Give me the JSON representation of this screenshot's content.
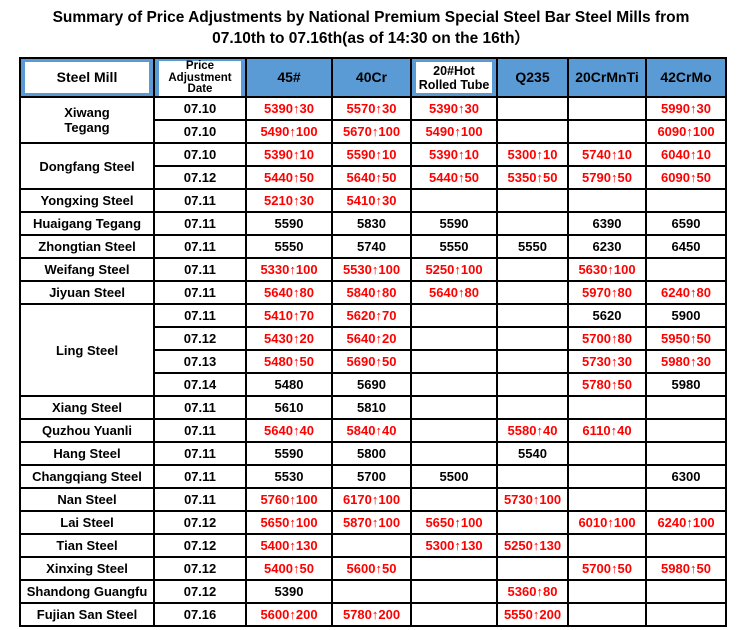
{
  "title": {
    "line1": "Summary of Price Adjustments by National Premium Special Steel Bar Steel Mills from",
    "line2": "07.10th to 07.16th(as of 14:30 on the 16th）"
  },
  "colors": {
    "header_blue": "#5B9BD5",
    "increase_red": "#FF0000",
    "border_black": "#000000",
    "background": "#FFFFFF"
  },
  "table": {
    "header": [
      {
        "id": "steel-mill",
        "lines": [
          "Steel Mill"
        ],
        "boxed": true
      },
      {
        "id": "price-adjustment-date",
        "lines": [
          "Price",
          "Adjustment",
          "Date"
        ],
        "boxed": true
      },
      {
        "id": "45",
        "lines": [
          "45#"
        ],
        "boxed": false
      },
      {
        "id": "40cr",
        "lines": [
          "40Cr"
        ],
        "boxed": false
      },
      {
        "id": "20-hot-rolled-tube",
        "lines": [
          "20#Hot",
          "Rolled Tube"
        ],
        "boxed": true
      },
      {
        "id": "q235",
        "lines": [
          "Q235"
        ],
        "boxed": false
      },
      {
        "id": "20crmnti",
        "lines": [
          "20CrMnTi"
        ],
        "boxed": false
      },
      {
        "id": "42crmo",
        "lines": [
          "42CrMo"
        ],
        "boxed": false
      }
    ]
  },
  "chart_data": {
    "type": "table",
    "title": "Summary of Price Adjustments by National Premium Special Steel Bar Steel Mills from 07.10th to 07.16th(as of 14:30 on the 16th）",
    "columns": [
      "Steel Mill",
      "Price Adjustment Date",
      "45#",
      "40Cr",
      "20#Hot Rolled Tube",
      "Q235",
      "20CrMnTi",
      "42CrMo"
    ],
    "rows": [
      {
        "mill": "Xiwang\nTegang",
        "rowspan": 2,
        "date": "07.10",
        "values": [
          "5390↑30",
          "5570↑30",
          "5390↑30",
          "",
          "",
          "5990↑30"
        ]
      },
      {
        "mill": null,
        "date": "07.10",
        "values": [
          "5490↑100",
          "5670↑100",
          "5490↑100",
          "",
          "",
          "6090↑100"
        ]
      },
      {
        "mill": "Dongfang Steel",
        "rowspan": 2,
        "date": "07.10",
        "values": [
          "5390↑10",
          "5590↑10",
          "5390↑10",
          "5300↑10",
          "5740↑10",
          "6040↑10"
        ]
      },
      {
        "mill": null,
        "date": "07.12",
        "values": [
          "5440↑50",
          "5640↑50",
          "5440↑50",
          "5350↑50",
          "5790↑50",
          "6090↑50"
        ]
      },
      {
        "mill": "Yongxing Steel",
        "rowspan": 1,
        "date": "07.11",
        "values": [
          "5210↑30",
          "5410↑30",
          "",
          "",
          "",
          ""
        ]
      },
      {
        "mill": "Huaigang Tegang",
        "rowspan": 1,
        "date": "07.11",
        "values": [
          "5590",
          "5830",
          "5590",
          "",
          "6390",
          "6590"
        ]
      },
      {
        "mill": "Zhongtian Steel",
        "rowspan": 1,
        "date": "07.11",
        "values": [
          "5550",
          "5740",
          "5550",
          "5550",
          "6230",
          "6450"
        ]
      },
      {
        "mill": "Weifang Steel",
        "rowspan": 1,
        "date": "07.11",
        "values": [
          "5330↑100",
          "5530↑100",
          "5250↑100",
          "",
          "5630↑100",
          ""
        ]
      },
      {
        "mill": "Jiyuan Steel",
        "rowspan": 1,
        "date": "07.11",
        "values": [
          "5640↑80",
          "5840↑80",
          "5640↑80",
          "",
          "5970↑80",
          "6240↑80"
        ]
      },
      {
        "mill": "Ling Steel",
        "rowspan": 4,
        "date": "07.11",
        "values": [
          "5410↑70",
          "5620↑70",
          "",
          "",
          "5620",
          "5900"
        ]
      },
      {
        "mill": null,
        "date": "07.12",
        "values": [
          "5430↑20",
          "5640↑20",
          "",
          "",
          "5700↑80",
          "5950↑50"
        ]
      },
      {
        "mill": null,
        "date": "07.13",
        "values": [
          "5480↑50",
          "5690↑50",
          "",
          "",
          "5730↑30",
          "5980↑30"
        ]
      },
      {
        "mill": null,
        "date": "07.14",
        "values": [
          "5480",
          "5690",
          "",
          "",
          "5780↑50",
          "5980"
        ]
      },
      {
        "mill": "Xiang Steel",
        "rowspan": 1,
        "date": "07.11",
        "values": [
          "5610",
          "5810",
          "",
          "",
          "",
          ""
        ]
      },
      {
        "mill": "Quzhou Yuanli",
        "rowspan": 1,
        "date": "07.11",
        "values": [
          "5640↑40",
          "5840↑40",
          "",
          "5580↑40",
          "6110↑40",
          ""
        ]
      },
      {
        "mill": "Hang Steel",
        "rowspan": 1,
        "date": "07.11",
        "values": [
          "5590",
          "5800",
          "",
          "5540",
          "",
          ""
        ]
      },
      {
        "mill": "Changqiang Steel",
        "rowspan": 1,
        "date": "07.11",
        "values": [
          "5530",
          "5700",
          "5500",
          "",
          "",
          "6300"
        ]
      },
      {
        "mill": "Nan Steel",
        "rowspan": 1,
        "date": "07.11",
        "values": [
          "5760↑100",
          "6170↑100",
          "",
          "5730↑100",
          "",
          ""
        ]
      },
      {
        "mill": "Lai Steel",
        "rowspan": 1,
        "date": "07.12",
        "values": [
          "5650↑100",
          "5870↑100",
          "5650↑100",
          "",
          "6010↑100",
          "6240↑100"
        ]
      },
      {
        "mill": "Tian Steel",
        "rowspan": 1,
        "date": "07.12",
        "values": [
          "5400↑130",
          "",
          "5300↑130",
          "5250↑130",
          "",
          ""
        ]
      },
      {
        "mill": "Xinxing Steel",
        "rowspan": 1,
        "date": "07.12",
        "values": [
          "5400↑50",
          "5600↑50",
          "",
          "",
          "5700↑50",
          "5980↑50"
        ]
      },
      {
        "mill": "Shandong Guangfu",
        "rowspan": 1,
        "date": "07.12",
        "values": [
          "5390",
          "",
          "",
          "5360↑80",
          "",
          ""
        ]
      },
      {
        "mill": "Fujian San Steel",
        "rowspan": 1,
        "date": "07.16",
        "values": [
          "5600↑200",
          "5780↑200",
          "",
          "5550↑200",
          "",
          ""
        ]
      }
    ]
  }
}
